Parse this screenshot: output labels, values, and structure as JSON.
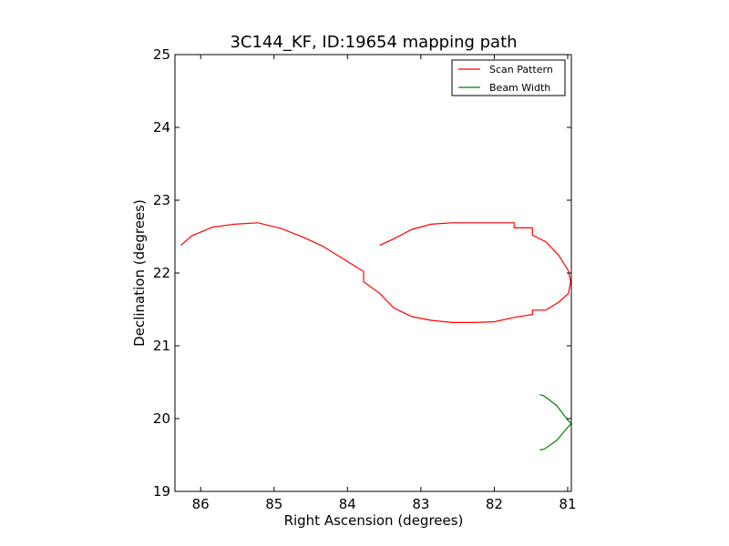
{
  "chart_data": {
    "type": "line",
    "title": "3C144_KF, ID:19654 mapping path",
    "xlabel": "Right Ascension (degrees)",
    "ylabel": "Declination (degrees)",
    "xlim": [
      86.35,
      80.95
    ],
    "ylim": [
      19,
      25
    ],
    "x_reversed": true,
    "xticks": [
      86,
      85,
      84,
      83,
      82,
      81
    ],
    "yticks": [
      19,
      20,
      21,
      22,
      23,
      24,
      25
    ],
    "grid": false,
    "legend": "top-right",
    "series": [
      {
        "name": "Scan Pattern",
        "color": "#ff0000",
        "x": [
          83.56,
          83.56,
          83.37,
          83.12,
          82.86,
          82.58,
          82.28,
          82.0,
          81.73,
          81.73,
          81.48,
          81.48,
          81.3,
          81.12,
          80.99,
          80.96,
          80.99,
          81.12,
          81.3,
          81.48,
          81.48,
          81.73,
          82.0,
          82.28,
          82.58,
          82.86,
          83.12,
          83.37,
          83.56,
          83.78,
          83.78,
          84.1,
          84.34,
          84.6,
          84.9,
          85.22,
          85.54,
          85.84,
          86.12,
          86.27
        ],
        "y": [
          22.38,
          22.38,
          22.47,
          22.6,
          22.67,
          22.69,
          22.69,
          22.69,
          22.69,
          22.62,
          22.62,
          22.52,
          22.43,
          22.24,
          22.03,
          21.88,
          21.72,
          21.6,
          21.49,
          21.49,
          21.43,
          21.39,
          21.33,
          21.32,
          21.32,
          21.35,
          21.4,
          21.52,
          21.72,
          21.88,
          22.02,
          22.22,
          22.37,
          22.49,
          22.61,
          22.69,
          22.67,
          22.63,
          22.51,
          22.38
        ]
      },
      {
        "name": "Beam Width",
        "color": "#008000",
        "x": [
          81.38,
          81.32,
          81.15,
          81.0,
          80.95,
          81.0,
          81.15,
          81.32,
          81.38
        ],
        "y": [
          20.33,
          20.31,
          20.18,
          19.98,
          19.93,
          19.88,
          19.7,
          19.58,
          19.57
        ]
      }
    ]
  }
}
